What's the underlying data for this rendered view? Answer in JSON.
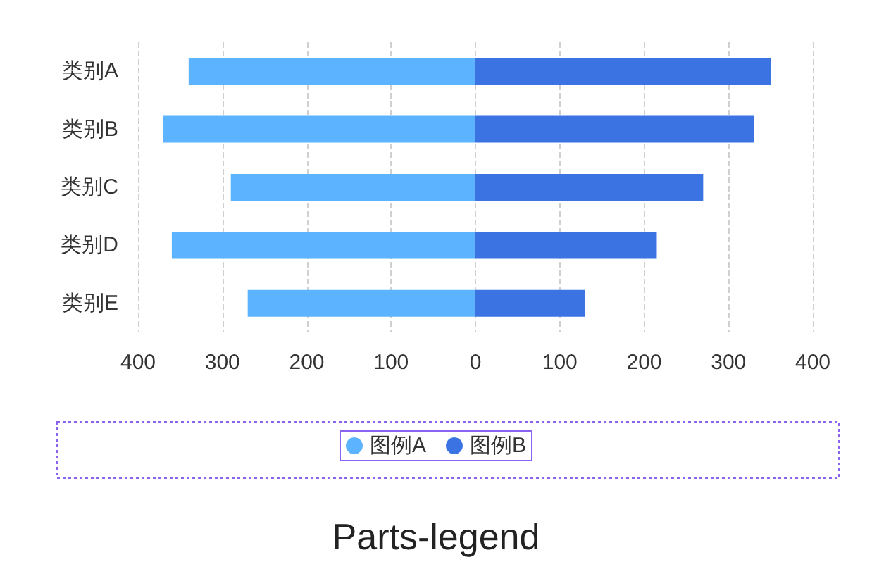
{
  "chart_data": {
    "type": "bar",
    "title": "Parts-legend",
    "orientation": "horizontal",
    "stacked": true,
    "categories": [
      "类别A",
      "类别B",
      "类别C",
      "类别D",
      "类别E"
    ],
    "series": [
      {
        "name": "图例A",
        "color": "#5cb3ff",
        "values": [
          -340,
          -370,
          -290,
          -360,
          -270
        ]
      },
      {
        "name": "图例B",
        "color": "#3b74e2",
        "values": [
          350,
          330,
          270,
          215,
          130
        ]
      }
    ],
    "xlim": [
      -400,
      400
    ],
    "xticks": [
      {
        "value": -400,
        "label": "400"
      },
      {
        "value": -300,
        "label": "300"
      },
      {
        "value": -200,
        "label": "200"
      },
      {
        "value": -100,
        "label": "100"
      },
      0,
      100,
      200,
      300,
      400
    ],
    "grid": "x",
    "legend": "bottom"
  }
}
